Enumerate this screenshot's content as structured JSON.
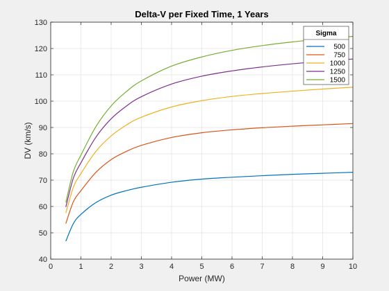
{
  "chart_data": {
    "type": "line",
    "title": "Delta-V per Fixed Time, 1 Years",
    "xlabel": "Power (MW)",
    "ylabel": "DV (km/s)",
    "xlim": [
      0,
      10
    ],
    "ylim": [
      40,
      130
    ],
    "xticks": [
      0,
      1,
      2,
      3,
      4,
      5,
      6,
      7,
      8,
      9,
      10
    ],
    "yticks": [
      40,
      50,
      60,
      70,
      80,
      90,
      100,
      110,
      120,
      130
    ],
    "grid": true,
    "legend": {
      "title": "Sigma",
      "position": "top-right"
    },
    "x": [
      0.5,
      0.75,
      1,
      1.5,
      2,
      2.5,
      3,
      4,
      5,
      6,
      7,
      8,
      9,
      10
    ],
    "series": [
      {
        "name": "500",
        "color": "#0072BD",
        "values": [
          46.8,
          53.5,
          57.0,
          61.5,
          64.3,
          66.0,
          67.3,
          69.2,
          70.4,
          71.1,
          71.7,
          72.2,
          72.6,
          73.0
        ]
      },
      {
        "name": "750",
        "color": "#D95319",
        "values": [
          53.5,
          61.8,
          66.0,
          73.0,
          77.8,
          80.9,
          83.2,
          86.2,
          88.0,
          89.1,
          89.9,
          90.5,
          91.0,
          91.5
        ]
      },
      {
        "name": "1000",
        "color": "#EDB120",
        "values": [
          57.5,
          67.3,
          72.5,
          81.0,
          86.8,
          90.9,
          93.9,
          97.8,
          100.2,
          101.8,
          102.9,
          103.8,
          104.6,
          105.3
        ]
      },
      {
        "name": "1250",
        "color": "#7E2F8E",
        "values": [
          59.8,
          70.8,
          76.6,
          86.4,
          93.3,
          98.1,
          101.7,
          106.5,
          109.5,
          111.5,
          113.0,
          114.2,
          115.2,
          116.0
        ]
      },
      {
        "name": "1500",
        "color": "#77AC30",
        "values": [
          61.5,
          73.3,
          79.5,
          90.4,
          98.2,
          103.6,
          107.7,
          113.3,
          116.8,
          119.3,
          121.1,
          122.5,
          123.6,
          124.6
        ]
      }
    ]
  }
}
